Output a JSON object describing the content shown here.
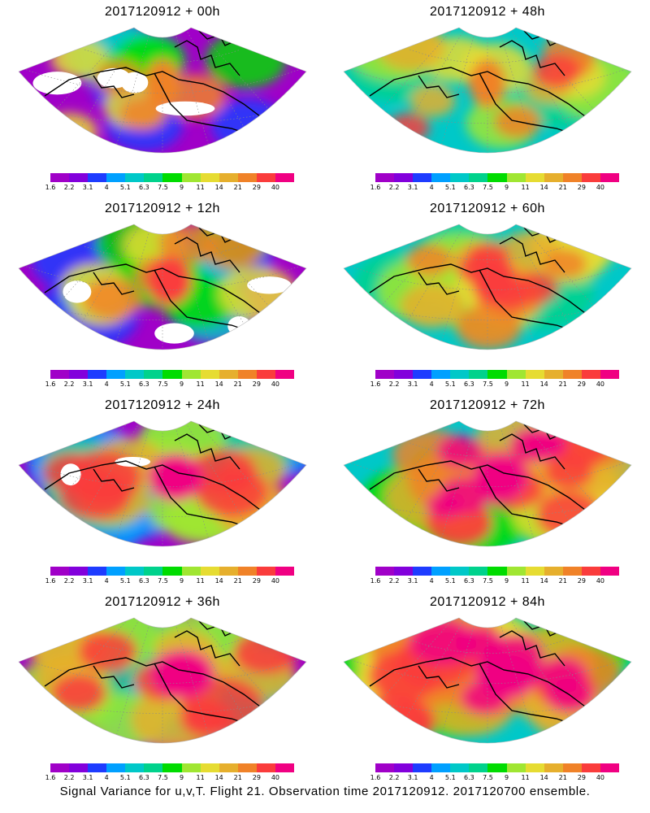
{
  "panels": [
    {
      "title": "2017120912 + 00h"
    },
    {
      "title": "2017120912 + 48h"
    },
    {
      "title": "2017120912 + 12h"
    },
    {
      "title": "2017120912 + 60h"
    },
    {
      "title": "2017120912 + 24h"
    },
    {
      "title": "2017120912 + 72h"
    },
    {
      "title": "2017120912 + 36h"
    },
    {
      "title": "2017120912 + 84h"
    }
  ],
  "colorbar": {
    "labels": [
      "1.6",
      "2.2",
      "3.1",
      "4",
      "5.1",
      "6.3",
      "7.5",
      "9",
      "11",
      "14",
      "21",
      "29",
      "40"
    ],
    "colors": [
      "#a000c8",
      "#8200dc",
      "#1e3cff",
      "#00a0ff",
      "#00c8c8",
      "#00d28c",
      "#00dc00",
      "#a0e632",
      "#e6dc32",
      "#e6af2d",
      "#f08228",
      "#fa3c3c",
      "#f00082"
    ]
  },
  "caption": "Signal Variance for u,v,T. Flight 21. Observation time 2017120912. 2017120700 ensemble."
}
